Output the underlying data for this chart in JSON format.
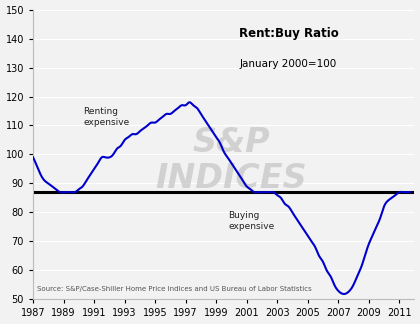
{
  "title_line1": "Rent:Buy Ratio",
  "title_line2": "January 2000=100",
  "source_text": "Source: S&P/Case-Shiller Home Price Indices and US Bureau of Labor Statistics",
  "annotation_renting": "Renting\nexpensive",
  "annotation_buying": "Buying\nexpensive",
  "hline_y": 87,
  "line_color": "#0000CC",
  "hline_color": "#000000",
  "background_color": "#f2f2f2",
  "xlim": [
    1987,
    2012
  ],
  "ylim": [
    50,
    150
  ],
  "yticks": [
    50,
    60,
    70,
    80,
    90,
    100,
    110,
    120,
    130,
    140,
    150
  ],
  "xtick_labels": [
    "1987",
    "1989",
    "1991",
    "1993",
    "1995",
    "1997",
    "1999",
    "2001",
    "2003",
    "2005",
    "2007",
    "2009",
    "2011"
  ],
  "years": [
    1987.0,
    1987.25,
    1987.5,
    1987.75,
    1988.0,
    1988.25,
    1988.5,
    1988.75,
    1989.0,
    1989.25,
    1989.5,
    1989.75,
    1990.0,
    1990.25,
    1990.5,
    1990.75,
    1991.0,
    1991.25,
    1991.5,
    1991.75,
    1992.0,
    1992.25,
    1992.5,
    1992.75,
    1993.0,
    1993.25,
    1993.5,
    1993.75,
    1994.0,
    1994.25,
    1994.5,
    1994.75,
    1995.0,
    1995.25,
    1995.5,
    1995.75,
    1996.0,
    1996.25,
    1996.5,
    1996.75,
    1997.0,
    1997.25,
    1997.5,
    1997.75,
    1998.0,
    1998.25,
    1998.5,
    1998.75,
    1999.0,
    1999.25,
    1999.5,
    1999.75,
    2000.0,
    2000.25,
    2000.5,
    2000.75,
    2001.0,
    2001.25,
    2001.5,
    2001.75,
    2002.0,
    2002.25,
    2002.5,
    2002.75,
    2003.0,
    2003.25,
    2003.5,
    2003.75,
    2004.0,
    2004.25,
    2004.5,
    2004.75,
    2005.0,
    2005.25,
    2005.5,
    2005.75,
    2006.0,
    2006.25,
    2006.5,
    2006.75,
    2007.0,
    2007.25,
    2007.5,
    2007.75,
    2008.0,
    2008.25,
    2008.5,
    2008.75,
    2009.0,
    2009.25,
    2009.5,
    2009.75,
    2010.0,
    2010.25,
    2010.5,
    2010.75,
    2011.0,
    2011.25,
    2011.5,
    2011.75
  ],
  "values": [
    99,
    96,
    93,
    91,
    90,
    89,
    88,
    87,
    87,
    87,
    87,
    87,
    88,
    89,
    91,
    93,
    95,
    97,
    99,
    99,
    99,
    100,
    102,
    103,
    105,
    106,
    107,
    107,
    108,
    109,
    110,
    111,
    111,
    112,
    113,
    114,
    114,
    115,
    116,
    117,
    117,
    118,
    117,
    116,
    114,
    112,
    110,
    108,
    106,
    104,
    101,
    99,
    97,
    95,
    93,
    91,
    89,
    88,
    87,
    87,
    87,
    87,
    87,
    87,
    86,
    85,
    83,
    82,
    80,
    78,
    76,
    74,
    72,
    70,
    68,
    65,
    63,
    60,
    58,
    55,
    53,
    52,
    52,
    53,
    55,
    58,
    61,
    65,
    69,
    72,
    75,
    78,
    82,
    84,
    85,
    86,
    87,
    87,
    87,
    87
  ]
}
